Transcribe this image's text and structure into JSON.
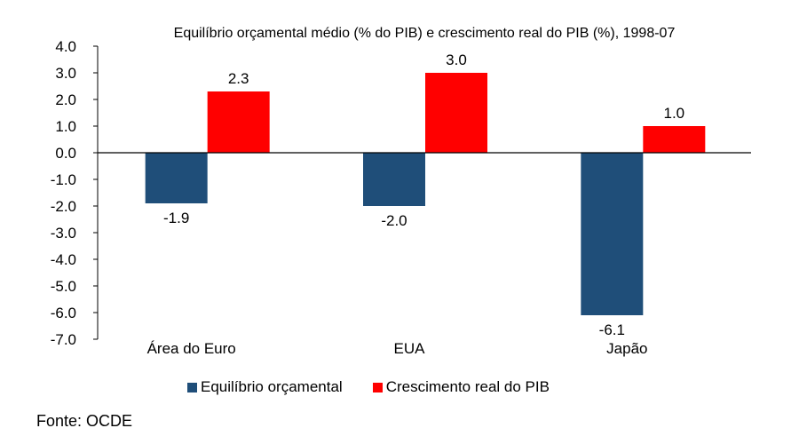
{
  "chart_data": {
    "type": "bar",
    "title": "Equilíbrio orçamental médio (% do PIB) e crescimento real do PIB (%), 1998-07",
    "xlabel": "",
    "ylabel": "",
    "categories": [
      "Área do Euro",
      "EUA",
      "Japão"
    ],
    "series": [
      {
        "name": "Equilíbrio orçamental",
        "color": "#1F4E79",
        "values": [
          -1.9,
          -2.0,
          -6.1
        ],
        "labels": [
          "-1.9",
          "-2.0",
          "-6.1"
        ]
      },
      {
        "name": "Crescimento real do PIB",
        "color": "#FF0000",
        "values": [
          2.3,
          3.0,
          1.0
        ],
        "labels": [
          "2.3",
          "3.0",
          "1.0"
        ]
      }
    ],
    "ylim": [
      -7.0,
      4.0
    ],
    "yticks": [
      "4.0",
      "3.0",
      "2.0",
      "1.0",
      "0.0",
      "-1.0",
      "-2.0",
      "-3.0",
      "-4.0",
      "-5.0",
      "-6.0",
      "-7.0"
    ],
    "grid": false,
    "legend_position": "bottom"
  },
  "source": "Fonte: OCDE"
}
